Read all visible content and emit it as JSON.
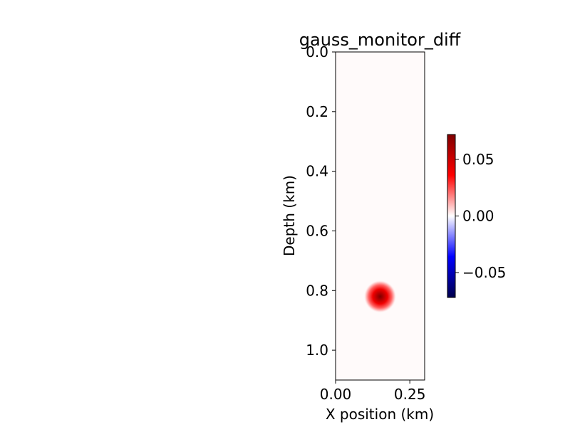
{
  "chart_data": {
    "type": "heatmap",
    "title": "gauss_monitor_diff",
    "xlabel": "X position (km)",
    "ylabel": "Depth (km)",
    "xlim": [
      0.0,
      0.3
    ],
    "ylim": [
      1.1,
      0.0
    ],
    "x_ticks": [
      0.0,
      0.25
    ],
    "x_tick_labels": [
      "0.00",
      "0.25"
    ],
    "y_ticks": [
      0.0,
      0.2,
      0.4,
      0.6,
      0.8,
      1.0
    ],
    "y_tick_labels": [
      "0.0",
      "0.2",
      "0.4",
      "0.6",
      "0.8",
      "1.0"
    ],
    "colormap": "seismic",
    "colormap_colors": [
      "#00004c",
      "#0000ff",
      "#ffffff",
      "#ff0000",
      "#7f0000"
    ],
    "colorbar": {
      "vmin": -0.072,
      "vmax": 0.072,
      "ticks": [
        -0.05,
        0.0,
        0.05
      ],
      "tick_labels": [
        "−0.05",
        "0.00",
        "0.05"
      ]
    },
    "background_value": 0.0003,
    "anomaly": {
      "center_x": 0.15,
      "center_depth": 0.82,
      "sigma": 0.025,
      "peak_value": 0.072
    },
    "grid": false,
    "legend": "none"
  }
}
